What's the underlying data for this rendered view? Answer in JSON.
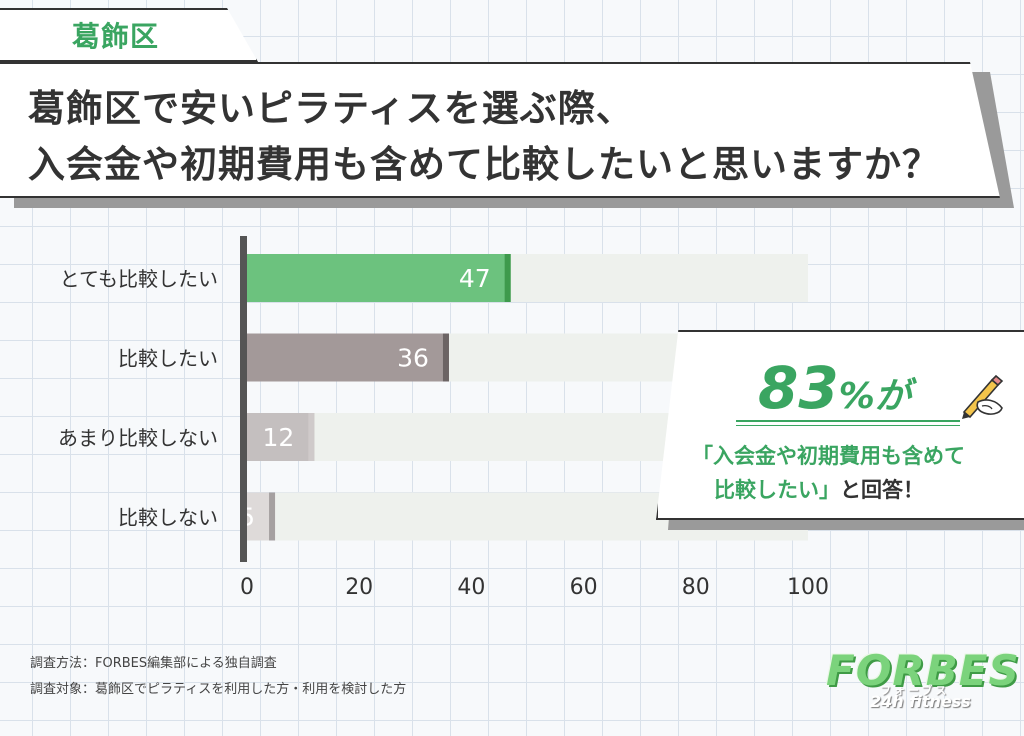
{
  "tag": "葛飾区",
  "title": {
    "line1": "葛飾区で安いピラティスを選ぶ際、",
    "line2": "入会金や初期費用も含めて比較したいと思いますか？"
  },
  "chart_data": {
    "type": "bar",
    "orientation": "horizontal",
    "categories": [
      "とても比較したい",
      "比較したい",
      "あまり比較しない",
      "比較しない"
    ],
    "values": [
      47,
      36,
      12,
      5
    ],
    "xlim": [
      0,
      100
    ],
    "xticks": [
      0,
      20,
      40,
      60,
      80,
      100
    ],
    "grid": false,
    "colors": [
      "#6cc27e",
      "#a39999",
      "#c4bfbf",
      "#dedad9"
    ],
    "accent_colors": [
      "#3e9a4c",
      "#6c6464",
      "#cfcaca",
      "#a5a0a0"
    ],
    "track_color": "#eef1ed"
  },
  "callout": {
    "number": "83",
    "percent": "%が",
    "line1": "「入会金や初期費用も含めて",
    "line2_green": "比較したい」",
    "line2_dark": "と回答！",
    "icon": "pencil-hand-icon"
  },
  "footnotes": {
    "method": "調査方法：FORBES編集部による独自調査",
    "target": "調査対象：葛飾区でピラティスを利用した方・利用を検討した方"
  },
  "logo": {
    "main": "FORBES",
    "kana": "フォーブス",
    "sub": "24h fitness"
  }
}
